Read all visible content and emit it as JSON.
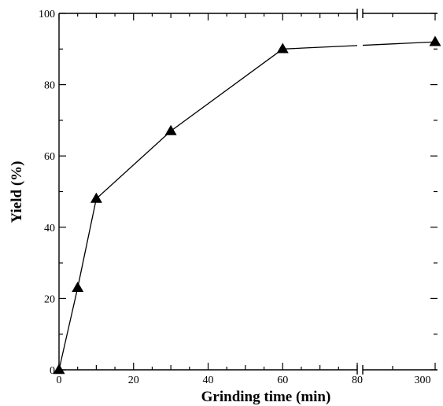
{
  "chart_data": {
    "type": "line",
    "title": "",
    "xlabel": "Grinding time (min)",
    "ylabel": "Yield (%)",
    "x_axis_break": {
      "after": 80,
      "before": 300
    },
    "xlim": [
      0,
      300
    ],
    "ylim": [
      0,
      100
    ],
    "x_tick_labels": [
      "0",
      "20",
      "40",
      "60",
      "80",
      "300"
    ],
    "y_tick_labels": [
      "0",
      "20",
      "40",
      "60",
      "80",
      "100"
    ],
    "series": [
      {
        "marker": "triangle",
        "color": "#000000",
        "x": [
          0,
          5,
          10,
          30,
          60,
          300
        ],
        "y": [
          0,
          23,
          48,
          67,
          90,
          92
        ]
      }
    ],
    "grid": false,
    "legend": "none"
  }
}
